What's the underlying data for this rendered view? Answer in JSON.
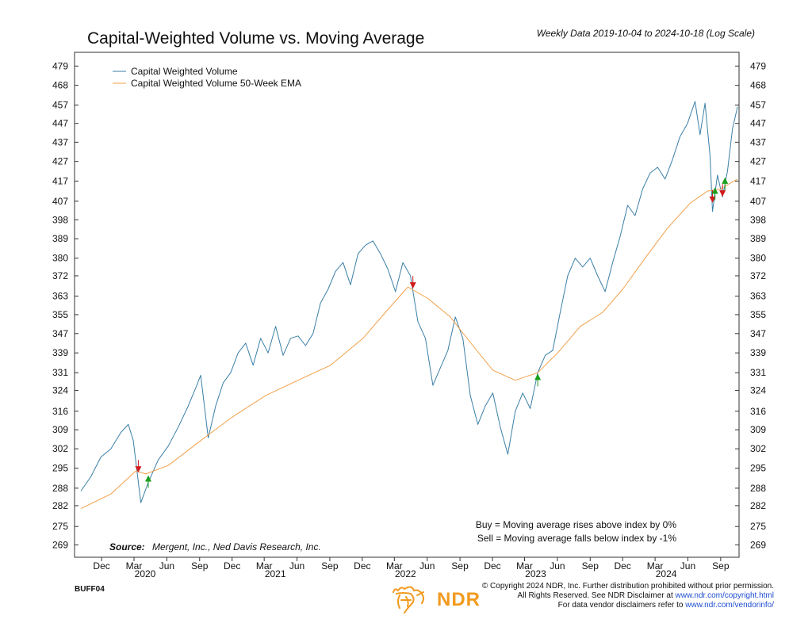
{
  "chart_data": {
    "type": "line",
    "title": "Capital-Weighted Volume vs. Moving Average",
    "subtitle": "Weekly Data 2019-10-04 to 2024-10-18 (Log Scale)",
    "x_range": [
      "2019-10-04",
      "2024-10-18"
    ],
    "y_scale": "log",
    "ylim": [
      265,
      487
    ],
    "y_ticks": [
      269,
      275,
      282,
      288,
      295,
      302,
      309,
      316,
      324,
      331,
      339,
      347,
      355,
      363,
      372,
      380,
      389,
      398,
      407,
      417,
      427,
      437,
      447,
      457,
      468,
      479
    ],
    "x_month_ticks": [
      {
        "label": "Dec",
        "date": "2019-12-01"
      },
      {
        "label": "Mar",
        "date": "2020-03-01"
      },
      {
        "label": "Jun",
        "date": "2020-06-01"
      },
      {
        "label": "Sep",
        "date": "2020-09-01"
      },
      {
        "label": "Dec",
        "date": "2020-12-01"
      },
      {
        "label": "Mar",
        "date": "2021-03-01"
      },
      {
        "label": "Jun",
        "date": "2021-06-01"
      },
      {
        "label": "Sep",
        "date": "2021-09-01"
      },
      {
        "label": "Dec",
        "date": "2021-12-01"
      },
      {
        "label": "Mar",
        "date": "2022-03-01"
      },
      {
        "label": "Jun",
        "date": "2022-06-01"
      },
      {
        "label": "Sep",
        "date": "2022-09-01"
      },
      {
        "label": "Dec",
        "date": "2022-12-01"
      },
      {
        "label": "Mar",
        "date": "2023-03-01"
      },
      {
        "label": "Jun",
        "date": "2023-06-01"
      },
      {
        "label": "Sep",
        "date": "2023-09-01"
      },
      {
        "label": "Dec",
        "date": "2023-12-01"
      },
      {
        "label": "Mar",
        "date": "2024-03-01"
      },
      {
        "label": "Jun",
        "date": "2024-06-01"
      },
      {
        "label": "Sep",
        "date": "2024-09-01"
      }
    ],
    "x_year_labels": [
      {
        "label": "2020",
        "date": "2020-03-01"
      },
      {
        "label": "2021",
        "date": "2021-03-01"
      },
      {
        "label": "2022",
        "date": "2022-03-01"
      },
      {
        "label": "2023",
        "date": "2023-03-01"
      },
      {
        "label": "2024",
        "date": "2024-03-01"
      }
    ],
    "legend_position": "top-left",
    "series": [
      {
        "name": "Capital Weighted Volume",
        "color": "#3b7fa6",
        "points": [
          [
            "2019-10-04",
            287
          ],
          [
            "2019-11-01",
            292
          ],
          [
            "2019-11-29",
            299
          ],
          [
            "2019-12-27",
            302
          ],
          [
            "2020-01-24",
            308
          ],
          [
            "2020-02-14",
            311
          ],
          [
            "2020-02-28",
            305
          ],
          [
            "2020-03-20",
            283
          ],
          [
            "2020-04-10",
            290
          ],
          [
            "2020-05-08",
            298
          ],
          [
            "2020-06-05",
            303
          ],
          [
            "2020-07-03",
            310
          ],
          [
            "2020-07-31",
            318
          ],
          [
            "2020-08-21",
            325
          ],
          [
            "2020-09-04",
            330
          ],
          [
            "2020-09-25",
            306
          ],
          [
            "2020-10-16",
            318
          ],
          [
            "2020-11-06",
            327
          ],
          [
            "2020-11-27",
            331
          ],
          [
            "2020-12-18",
            339
          ],
          [
            "2021-01-08",
            343
          ],
          [
            "2021-01-29",
            334
          ],
          [
            "2021-02-19",
            345
          ],
          [
            "2021-03-12",
            339
          ],
          [
            "2021-04-02",
            350
          ],
          [
            "2021-04-23",
            338
          ],
          [
            "2021-05-14",
            345
          ],
          [
            "2021-06-04",
            346
          ],
          [
            "2021-06-25",
            342
          ],
          [
            "2021-07-16",
            347
          ],
          [
            "2021-08-06",
            360
          ],
          [
            "2021-08-27",
            366
          ],
          [
            "2021-09-17",
            374
          ],
          [
            "2021-10-08",
            378
          ],
          [
            "2021-10-29",
            368
          ],
          [
            "2021-11-19",
            382
          ],
          [
            "2021-12-10",
            386
          ],
          [
            "2021-12-31",
            388
          ],
          [
            "2022-01-21",
            382
          ],
          [
            "2022-02-11",
            375
          ],
          [
            "2022-03-04",
            365
          ],
          [
            "2022-03-25",
            378
          ],
          [
            "2022-04-15",
            372
          ],
          [
            "2022-05-06",
            352
          ],
          [
            "2022-05-27",
            345
          ],
          [
            "2022-06-17",
            326
          ],
          [
            "2022-07-08",
            333
          ],
          [
            "2022-07-29",
            340
          ],
          [
            "2022-08-19",
            354
          ],
          [
            "2022-09-09",
            345
          ],
          [
            "2022-09-30",
            322
          ],
          [
            "2022-10-21",
            311
          ],
          [
            "2022-11-11",
            318
          ],
          [
            "2022-12-02",
            323
          ],
          [
            "2022-12-23",
            310
          ],
          [
            "2023-01-13",
            300
          ],
          [
            "2023-02-03",
            316
          ],
          [
            "2023-02-24",
            323
          ],
          [
            "2023-03-17",
            317
          ],
          [
            "2023-04-07",
            331
          ],
          [
            "2023-04-28",
            338
          ],
          [
            "2023-05-19",
            340
          ],
          [
            "2023-06-09",
            356
          ],
          [
            "2023-06-30",
            372
          ],
          [
            "2023-07-21",
            380
          ],
          [
            "2023-08-11",
            376
          ],
          [
            "2023-09-01",
            380
          ],
          [
            "2023-09-22",
            372
          ],
          [
            "2023-10-13",
            365
          ],
          [
            "2023-11-03",
            378
          ],
          [
            "2023-11-24",
            390
          ],
          [
            "2023-12-15",
            405
          ],
          [
            "2024-01-05",
            400
          ],
          [
            "2024-01-26",
            413
          ],
          [
            "2024-02-16",
            421
          ],
          [
            "2024-03-08",
            424
          ],
          [
            "2024-03-29",
            418
          ],
          [
            "2024-04-19",
            428
          ],
          [
            "2024-05-10",
            440
          ],
          [
            "2024-05-31",
            447
          ],
          [
            "2024-06-21",
            459
          ],
          [
            "2024-07-05",
            441
          ],
          [
            "2024-07-19",
            458
          ],
          [
            "2024-08-02",
            430
          ],
          [
            "2024-08-09",
            402
          ],
          [
            "2024-08-23",
            420
          ],
          [
            "2024-09-06",
            409
          ],
          [
            "2024-09-20",
            422
          ],
          [
            "2024-10-04",
            444
          ],
          [
            "2024-10-18",
            456
          ]
        ]
      },
      {
        "name": "Capital Weighted Volume 50-Week EMA",
        "color": "#f2a04a",
        "points": [
          [
            "2019-10-04",
            281
          ],
          [
            "2019-12-27",
            286
          ],
          [
            "2020-03-06",
            294
          ],
          [
            "2020-04-03",
            293
          ],
          [
            "2020-06-05",
            296
          ],
          [
            "2020-09-04",
            305
          ],
          [
            "2020-12-04",
            314
          ],
          [
            "2021-03-05",
            322
          ],
          [
            "2021-06-04",
            328
          ],
          [
            "2021-09-03",
            334
          ],
          [
            "2021-12-03",
            345
          ],
          [
            "2022-02-04",
            356
          ],
          [
            "2022-04-08",
            367
          ],
          [
            "2022-06-03",
            362
          ],
          [
            "2022-08-05",
            354
          ],
          [
            "2022-10-07",
            342
          ],
          [
            "2022-12-02",
            332
          ],
          [
            "2023-02-03",
            328
          ],
          [
            "2023-04-07",
            331
          ],
          [
            "2023-06-02",
            339
          ],
          [
            "2023-08-04",
            350
          ],
          [
            "2023-10-06",
            356
          ],
          [
            "2023-12-01",
            366
          ],
          [
            "2024-02-02",
            380
          ],
          [
            "2024-04-05",
            394
          ],
          [
            "2024-06-07",
            406
          ],
          [
            "2024-07-26",
            412
          ],
          [
            "2024-08-30",
            413
          ],
          [
            "2024-10-18",
            418
          ]
        ]
      }
    ],
    "signals": [
      {
        "type": "sell",
        "date": "2020-03-13",
        "value": 294
      },
      {
        "type": "buy",
        "date": "2020-04-10",
        "value": 292
      },
      {
        "type": "sell",
        "date": "2022-04-22",
        "value": 367
      },
      {
        "type": "buy",
        "date": "2023-04-07",
        "value": 330
      },
      {
        "type": "sell",
        "date": "2024-08-09",
        "value": 407
      },
      {
        "type": "buy",
        "date": "2024-08-16",
        "value": 413
      },
      {
        "type": "sell",
        "date": "2024-09-06",
        "value": 410
      },
      {
        "type": "buy",
        "date": "2024-09-13",
        "value": 418
      }
    ],
    "signal_colors": {
      "buy": "#1aa01a",
      "sell": "#d11a1a"
    }
  },
  "notes": {
    "buy": "Buy = Moving average rises above index by 0%",
    "sell": "Sell = Moving average falls below index by -1%"
  },
  "source": {
    "label": "Source:",
    "text": "Mergent, Inc., Ned Davis Research, Inc."
  },
  "footer": {
    "chart_id": "BUFF04",
    "logo_icon": "ndr-bull-logo-icon",
    "logo_text": "NDR",
    "copyright_line1": "© Copyright 2024 NDR, Inc. Further distribution prohibited without prior permission.",
    "copyright_line2_pre": "All Rights Reserved. See NDR Disclaimer at ",
    "copyright_line2_link": "www.ndr.com/copyright.html",
    "copyright_line3_pre": "For data vendor disclaimers refer to ",
    "copyright_line3_link": "www.ndr.com/vendorinfo/"
  }
}
